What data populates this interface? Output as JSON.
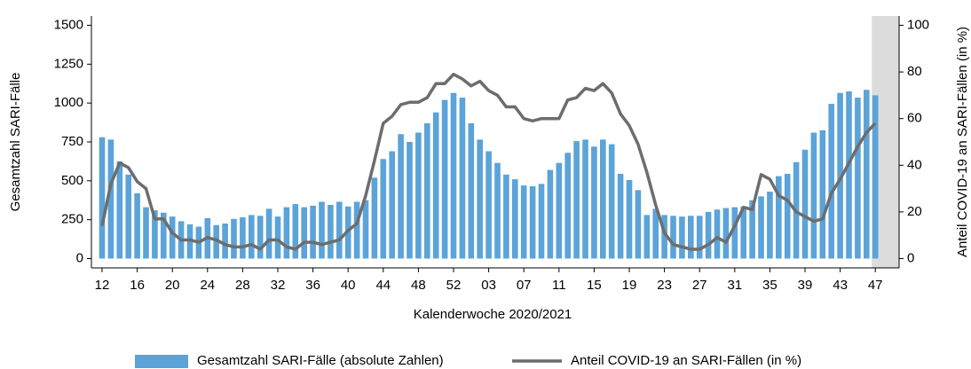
{
  "chart_data": {
    "type": "combo",
    "xlabel": "Kalenderwoche 2020/2021",
    "ylabel": "Gesamtzahl SARI-Fälle",
    "y2label": "Anteil COVID-19 an SARI-Fällen (in %)",
    "categories": [
      "12",
      null,
      null,
      null,
      "16",
      null,
      null,
      null,
      "20",
      null,
      null,
      null,
      "24",
      null,
      null,
      null,
      "28",
      null,
      null,
      null,
      "32",
      null,
      null,
      null,
      "36",
      null,
      null,
      null,
      "40",
      null,
      null,
      null,
      "44",
      null,
      null,
      null,
      "48",
      null,
      null,
      null,
      "52",
      null,
      null,
      null,
      "03",
      null,
      null,
      null,
      "07",
      null,
      null,
      null,
      "11",
      null,
      null,
      null,
      "15",
      null,
      null,
      null,
      "19",
      null,
      null,
      null,
      "23",
      null,
      null,
      null,
      "27",
      null,
      null,
      null,
      "31",
      null,
      null,
      null,
      "35",
      null,
      null,
      null,
      "39",
      null,
      null,
      null,
      "43",
      null,
      null,
      null,
      "47"
    ],
    "series": [
      {
        "name": "Gesamtzahl SARI-Fälle (absolute Zahlen)",
        "type": "bar",
        "color": "#5ba3d9",
        "values": [
          780,
          765,
          625,
          540,
          420,
          330,
          310,
          295,
          270,
          240,
          220,
          205,
          260,
          215,
          225,
          255,
          265,
          280,
          275,
          320,
          270,
          330,
          350,
          330,
          340,
          365,
          345,
          365,
          335,
          365,
          375,
          520,
          640,
          690,
          800,
          750,
          810,
          870,
          940,
          1020,
          1065,
          1035,
          870,
          765,
          690,
          615,
          540,
          510,
          470,
          465,
          480,
          570,
          615,
          680,
          755,
          765,
          720,
          765,
          735,
          545,
          505,
          440,
          280,
          320,
          280,
          275,
          270,
          275,
          275,
          300,
          315,
          325,
          330,
          335,
          375,
          400,
          430,
          530,
          545,
          620,
          700,
          810,
          825,
          995,
          1065,
          1075,
          1035,
          1085,
          1050
        ]
      },
      {
        "name": "Anteil COVID-19 an SARI-Fällen (in %)",
        "type": "line",
        "axis": "y2",
        "color": "#6d6d6d",
        "values": [
          14,
          32,
          41,
          39,
          33,
          30,
          17,
          17,
          11,
          8,
          8,
          7,
          9,
          8,
          6,
          5,
          5,
          6,
          4,
          8,
          8,
          5,
          4,
          7,
          7,
          6,
          7,
          8,
          12,
          15,
          27,
          42,
          58,
          61,
          66,
          67,
          67,
          69,
          75,
          75,
          79,
          77,
          74,
          76,
          72,
          70,
          65,
          65,
          60,
          59,
          60,
          60,
          60,
          68,
          69,
          73,
          72,
          75,
          71,
          62,
          57,
          49,
          37,
          23,
          11,
          6,
          5,
          4,
          4,
          6,
          9,
          7,
          14,
          22,
          21,
          36,
          34,
          27,
          25,
          20,
          18,
          16,
          17,
          28,
          34,
          41,
          48,
          54,
          58
        ]
      }
    ],
    "ylim": [
      -60,
      1560
    ],
    "yticks": [
      0,
      250,
      500,
      750,
      1000,
      1250,
      1500
    ],
    "y2lim": [
      -4,
      104
    ],
    "y2ticks": [
      0,
      20,
      40,
      60,
      80,
      100
    ],
    "legend": "bottom"
  }
}
